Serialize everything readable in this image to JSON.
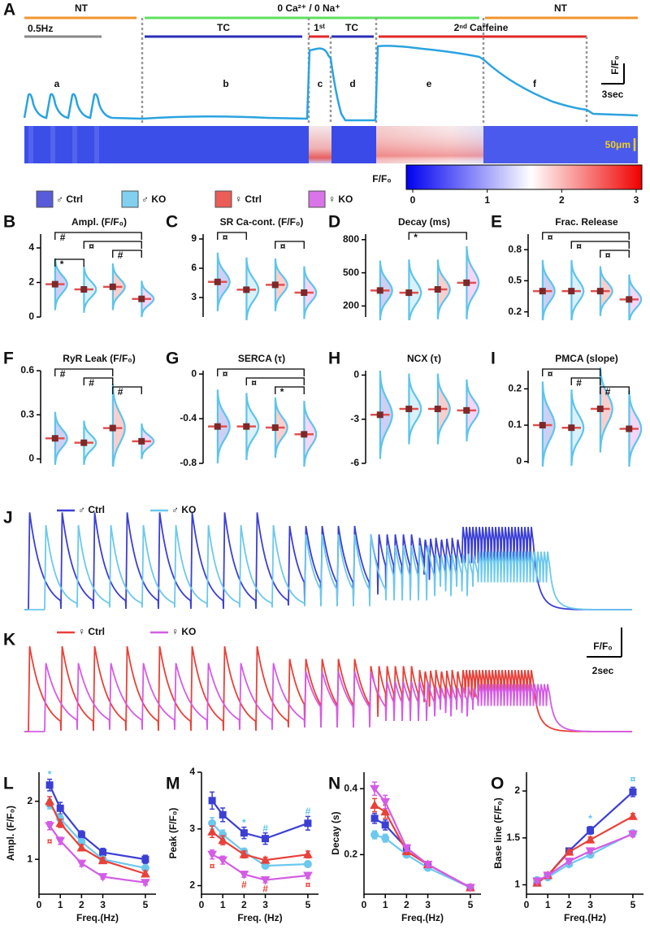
{
  "panel_A": {
    "letter": "A",
    "solutions": [
      "NT",
      "0 Ca²⁺ / 0 Na⁺",
      "NT"
    ],
    "protocols": [
      "0.5Hz",
      "TC",
      "1ˢᵗ",
      "TC",
      "2ⁿᵈ Caffeine"
    ],
    "segments": [
      "a",
      "b",
      "c",
      "d",
      "e",
      "f"
    ],
    "scale_y": "F/F₀",
    "scale_x": "3sec",
    "scale_space": "50μm",
    "colorbar": {
      "label": "F/F₀",
      "clim": [
        0,
        3
      ],
      "ticks": [
        0,
        1,
        2,
        3
      ]
    }
  },
  "groups": [
    {
      "name": "♂ Ctrl",
      "color": "#3b3fd4",
      "marker": "square"
    },
    {
      "name": "♂ KO",
      "color": "#6cc8ee",
      "marker": "circle"
    },
    {
      "name": "♀ Ctrl",
      "color": "#e8413a",
      "marker": "triangle"
    },
    {
      "name": "♀ KO",
      "color": "#d45ce6",
      "marker": "triangle-down"
    }
  ],
  "summary": [
    {
      "letter": "B",
      "title": "Ampl. (F/F₀)",
      "ylim": [
        0,
        4.8
      ],
      "yticks": [
        0,
        2,
        4
      ],
      "means": [
        1.9,
        1.6,
        1.75,
        1.05
      ],
      "sd": [
        0.5,
        0.45,
        0.45,
        0.35
      ],
      "brackets": [
        {
          "text": "#",
          "between": [
            "♂ Ctrl",
            "♀ KO"
          ]
        },
        {
          "text": "¤",
          "between": [
            "♂ KO",
            "♀ KO"
          ]
        },
        {
          "text": "#",
          "between": [
            "♀ Ctrl",
            "♀ KO"
          ]
        },
        {
          "text": "*",
          "between": [
            "♂ Ctrl",
            "♂ KO"
          ]
        }
      ]
    },
    {
      "letter": "C",
      "title": "SR Ca-cont. (F/F₀)",
      "ylim": [
        1,
        9.5
      ],
      "yticks": [
        3,
        6,
        9
      ],
      "means": [
        4.6,
        3.8,
        4.3,
        3.5
      ],
      "sd": [
        1.0,
        1.1,
        0.9,
        0.9
      ],
      "brackets": [
        {
          "text": "¤",
          "between": [
            "♂ Ctrl",
            "♂ KO"
          ]
        },
        {
          "text": "¤",
          "between": [
            "♀ Ctrl",
            "♀ KO"
          ]
        }
      ]
    },
    {
      "letter": "D",
      "title": "Decay (ms)",
      "ylim": [
        100,
        850
      ],
      "yticks": [
        200,
        500,
        800
      ],
      "means": [
        340,
        320,
        350,
        410
      ],
      "sd": [
        90,
        100,
        90,
        110
      ],
      "brackets": [
        {
          "text": "*",
          "between": [
            "♂ KO",
            "♀ KO"
          ]
        }
      ]
    },
    {
      "letter": "E",
      "title": "Frac. Release",
      "ylim": [
        0.15,
        0.95
      ],
      "yticks": [
        0.2,
        0.5,
        0.8
      ],
      "means": [
        0.4,
        0.4,
        0.4,
        0.32
      ],
      "sd": [
        0.1,
        0.1,
        0.08,
        0.08
      ],
      "brackets": [
        {
          "text": "¤",
          "between": [
            "♂ Ctrl",
            "♀ KO"
          ]
        },
        {
          "text": "¤",
          "between": [
            "♂ KO",
            "♀ KO"
          ]
        },
        {
          "text": "¤",
          "between": [
            "♀ Ctrl",
            "♀ KO"
          ]
        }
      ]
    },
    {
      "letter": "F",
      "title": "RyR Leak (F/F₀)",
      "ylim": [
        -0.03,
        0.6
      ],
      "yticks": [
        0,
        0.3,
        0.6
      ],
      "means": [
        0.14,
        0.11,
        0.21,
        0.12
      ],
      "sd": [
        0.06,
        0.05,
        0.1,
        0.04
      ],
      "brackets": [
        {
          "text": "#",
          "between": [
            "♂ Ctrl",
            "♀ Ctrl"
          ]
        },
        {
          "text": "#",
          "between": [
            "♂ KO",
            "♀ Ctrl"
          ]
        },
        {
          "text": "#",
          "between": [
            "♀ Ctrl",
            "♀ KO"
          ]
        }
      ]
    },
    {
      "letter": "G",
      "title": "SERCA (τ)",
      "ylim": [
        -0.8,
        0.03
      ],
      "yticks": [
        -0.8,
        -0.4,
        0
      ],
      "means": [
        -0.47,
        -0.47,
        -0.48,
        -0.54
      ],
      "sd": [
        0.11,
        0.1,
        0.09,
        0.1
      ],
      "brackets": [
        {
          "text": "¤",
          "between": [
            "♂ Ctrl",
            "♀ KO"
          ]
        },
        {
          "text": "¤",
          "between": [
            "♂ KO",
            "♀ KO"
          ]
        },
        {
          "text": "*",
          "between": [
            "♀ Ctrl",
            "♀ KO"
          ]
        }
      ]
    },
    {
      "letter": "H",
      "title": "NCX (τ)",
      "ylim": [
        -6,
        0.3
      ],
      "yticks": [
        -6,
        -3,
        0
      ],
      "means": [
        -2.7,
        -2.3,
        -2.3,
        -2.4
      ],
      "sd": [
        1.0,
        0.8,
        0.8,
        0.7
      ],
      "brackets": []
    },
    {
      "letter": "I",
      "title": "PMCA (slope)",
      "ylim": [
        -0.005,
        0.25
      ],
      "yticks": [
        0,
        0.1,
        0.2
      ],
      "means": [
        0.1,
        0.093,
        0.145,
        0.09
      ],
      "sd": [
        0.04,
        0.035,
        0.04,
        0.035
      ],
      "brackets": [
        {
          "text": "¤",
          "between": [
            "♂ Ctrl",
            "♀ Ctrl"
          ]
        },
        {
          "text": "#",
          "between": [
            "♂ KO",
            "♀ Ctrl"
          ]
        },
        {
          "text": "#",
          "between": [
            "♀ Ctrl",
            "♀ KO"
          ]
        }
      ]
    }
  ],
  "traces": [
    {
      "letter": "J",
      "groups": [
        "♂ Ctrl",
        "♂ KO"
      ]
    },
    {
      "letter": "K",
      "groups": [
        "♀ Ctrl",
        "♀ KO"
      ],
      "scale_y": "F/F₀",
      "scale_x": "2sec"
    }
  ],
  "frequency": {
    "x": [
      0.5,
      1,
      2,
      3,
      5
    ],
    "xlim": [
      0,
      5.5
    ],
    "xticks": [
      0,
      1,
      2,
      3,
      5
    ],
    "charts": [
      {
        "letter": "L",
        "ylabel": "Ampl. (F/F₀)",
        "xlabel": "Freq.(Hz)",
        "ylim": [
          0.4,
          2.5
        ],
        "yticks": [
          1,
          2
        ],
        "series": [
          {
            "values": [
              2.28,
              1.88,
              1.42,
              1.12,
              1.0
            ],
            "errors": [
              0.1,
              0.1,
              0.07,
              0.07,
              0.07
            ]
          },
          {
            "values": [
              1.95,
              1.7,
              1.3,
              1.0,
              0.85
            ],
            "errors": [
              0.08,
              0.07,
              0.05,
              0.05,
              0.05
            ]
          },
          {
            "values": [
              2.0,
              1.62,
              1.2,
              0.98,
              0.75
            ],
            "errors": [
              0.08,
              0.07,
              0.05,
              0.05,
              0.05
            ]
          },
          {
            "values": [
              1.58,
              1.32,
              0.93,
              0.7,
              0.6
            ],
            "errors": [
              0.07,
              0.06,
              0.05,
              0.04,
              0.04
            ]
          }
        ],
        "annotations": [
          {
            "text": "*",
            "x": 0.5,
            "y": 2.45,
            "color": "#5ec4ea"
          },
          {
            "text": "¤",
            "x": 0.5,
            "y": 1.3,
            "color": "#e8413a"
          }
        ]
      },
      {
        "letter": "M",
        "ylabel": "Peak (F/F₀)",
        "xlabel": "Freq. (Hz)",
        "ylim": [
          1.85,
          4
        ],
        "yticks": [
          2,
          3,
          4
        ],
        "series": [
          {
            "values": [
              3.5,
              3.25,
              2.93,
              2.83,
              3.1
            ],
            "errors": [
              0.15,
              0.12,
              0.1,
              0.1,
              0.12
            ]
          },
          {
            "values": [
              3.1,
              2.9,
              2.6,
              2.35,
              2.38
            ],
            "errors": [
              0.1,
              0.08,
              0.06,
              0.05,
              0.05
            ]
          },
          {
            "values": [
              2.95,
              2.8,
              2.55,
              2.45,
              2.55
            ],
            "errors": [
              0.1,
              0.08,
              0.06,
              0.05,
              0.06
            ]
          },
          {
            "values": [
              2.55,
              2.45,
              2.2,
              2.1,
              2.18
            ],
            "errors": [
              0.08,
              0.07,
              0.05,
              0.05,
              0.05
            ]
          }
        ],
        "annotations": [
          {
            "text": "*",
            "x": 2,
            "y": 3.1,
            "color": "#5ec4ea"
          },
          {
            "text": "#",
            "x": 3,
            "y": 3.0,
            "color": "#5ec4ea"
          },
          {
            "text": "#",
            "x": 5,
            "y": 3.3,
            "color": "#5ec4ea"
          },
          {
            "text": "¤",
            "x": 0.5,
            "y": 2.33,
            "color": "#e8413a"
          },
          {
            "text": "#",
            "x": 2,
            "y": 2.0,
            "color": "#e8413a"
          },
          {
            "text": "#",
            "x": 3,
            "y": 1.93,
            "color": "#e8413a"
          },
          {
            "text": "¤",
            "x": 5,
            "y": 2.0,
            "color": "#e8413a"
          }
        ]
      },
      {
        "letter": "N",
        "ylabel": "Decay (s)",
        "xlabel": "Freq.(Hz)",
        "ylim": [
          0.08,
          0.45
        ],
        "yticks": [
          0.2,
          0.4
        ],
        "series": [
          {
            "values": [
              0.31,
              0.29,
              0.22,
              0.17,
              0.1
            ],
            "errors": [
              0.015,
              0.015,
              0.01,
              0.008,
              0.005
            ]
          },
          {
            "values": [
              0.26,
              0.25,
              0.2,
              0.16,
              0.1
            ],
            "errors": [
              0.012,
              0.012,
              0.008,
              0.007,
              0.005
            ]
          },
          {
            "values": [
              0.35,
              0.33,
              0.21,
              0.17,
              0.1
            ],
            "errors": [
              0.02,
              0.02,
              0.01,
              0.008,
              0.005
            ]
          },
          {
            "values": [
              0.4,
              0.36,
              0.22,
              0.17,
              0.1
            ],
            "errors": [
              0.02,
              0.02,
              0.01,
              0.008,
              0.005
            ]
          }
        ],
        "annotations": []
      },
      {
        "letter": "O",
        "ylabel": "Base line (F/F₀)",
        "xlabel": "Freq.(Hz)",
        "ylim": [
          0.9,
          2.2
        ],
        "yticks": [
          1,
          1.5,
          2
        ],
        "series": [
          {
            "values": [
              1.02,
              1.1,
              1.36,
              1.58,
              1.99
            ],
            "errors": [
              0.02,
              0.02,
              0.03,
              0.04,
              0.05
            ]
          },
          {
            "values": [
              1.05,
              1.08,
              1.22,
              1.32,
              1.55
            ],
            "errors": [
              0.02,
              0.02,
              0.02,
              0.03,
              0.03
            ]
          },
          {
            "values": [
              1.02,
              1.1,
              1.35,
              1.48,
              1.73
            ],
            "errors": [
              0.02,
              0.02,
              0.02,
              0.03,
              0.03
            ]
          },
          {
            "values": [
              1.04,
              1.1,
              1.25,
              1.36,
              1.54
            ],
            "errors": [
              0.02,
              0.02,
              0.02,
              0.02,
              0.03
            ]
          }
        ],
        "annotations": [
          {
            "text": "*",
            "x": 3,
            "y": 1.7,
            "color": "#5ec4ea"
          },
          {
            "text": "¤",
            "x": 5,
            "y": 2.12,
            "color": "#5ec4ea"
          }
        ]
      }
    ]
  }
}
